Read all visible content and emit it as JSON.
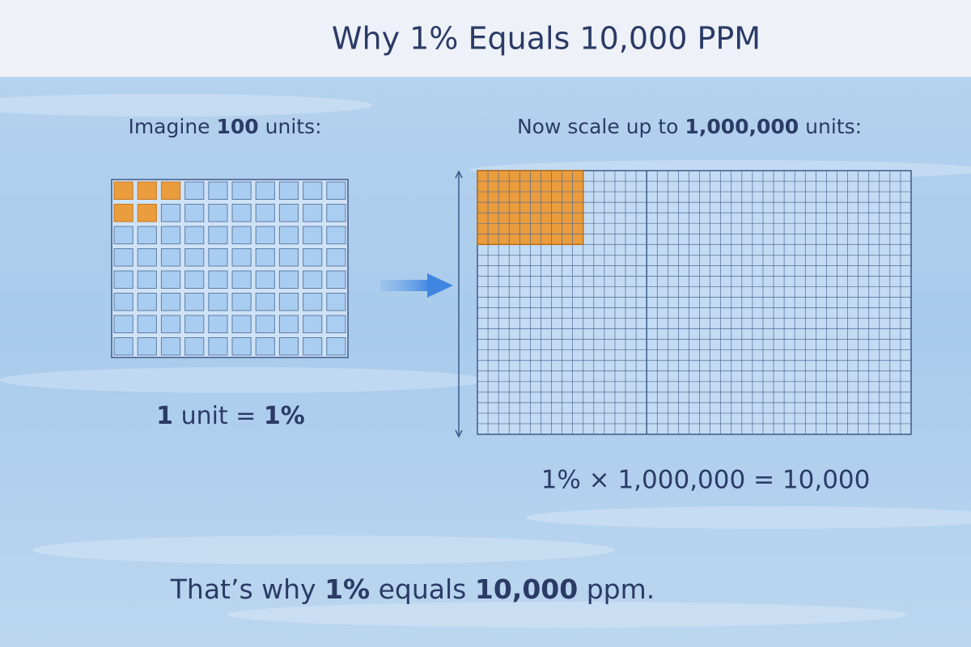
{
  "header": {
    "title": "Why 1% Equals 10,000 PPM"
  },
  "left": {
    "caption": [
      "Imagine",
      "100",
      "units:"
    ],
    "note": [
      "1",
      "unit =",
      "1%"
    ]
  },
  "right": {
    "caption": [
      "Now scale up to",
      "1,000,000",
      "units:"
    ],
    "equation": "1% × 1,000,000 = 10,000"
  },
  "footer": {
    "conclusion": [
      "That’s why",
      "1%",
      "equals",
      "10,000",
      "ppm."
    ]
  }
}
